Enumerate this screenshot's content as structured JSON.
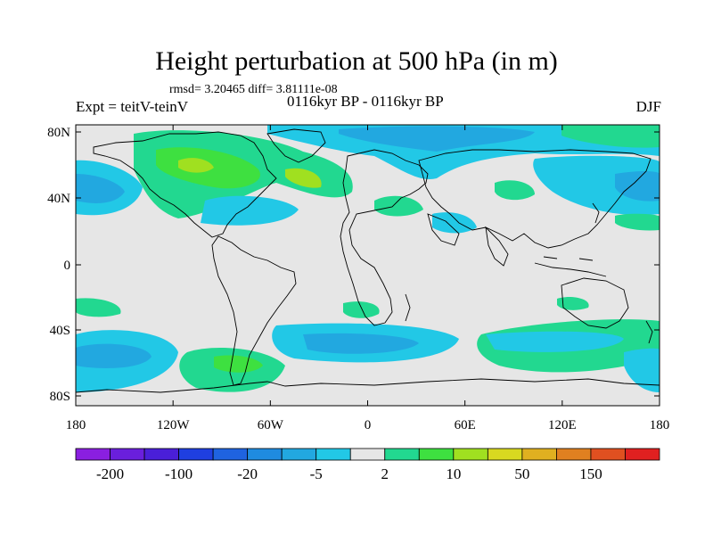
{
  "title": "Height perturbation at 500 hPa (in m)",
  "stats": "rmsd= 3.20465 diff= 3.81111e-08",
  "left_label": "Expt = teitV-teinV",
  "center_label": "0116kyr BP - 0116kyr BP",
  "right_label": "DJF",
  "map": {
    "lon_ticks": [
      "180",
      "120W",
      "60W",
      "0",
      "60E",
      "120E",
      "180"
    ],
    "lat_ticks": [
      "80N",
      "40N",
      "0",
      "40S",
      "80S"
    ],
    "background_color": "#e6e6e6",
    "coastline_color": "#000000"
  },
  "colorbar": {
    "colors": [
      "#8a1fe0",
      "#6a1fdc",
      "#4a1fd8",
      "#1f3fe0",
      "#1f63e0",
      "#1f8be0",
      "#22a8e0",
      "#22c8e6",
      "#e6e6e6",
      "#22d890",
      "#3ee040",
      "#a0e020",
      "#d8d820",
      "#e0b020",
      "#e08020",
      "#e05020",
      "#e02020"
    ],
    "labels": [
      "-200",
      "-100",
      "-20",
      "-5",
      "2",
      "10",
      "50",
      "150"
    ]
  }
}
